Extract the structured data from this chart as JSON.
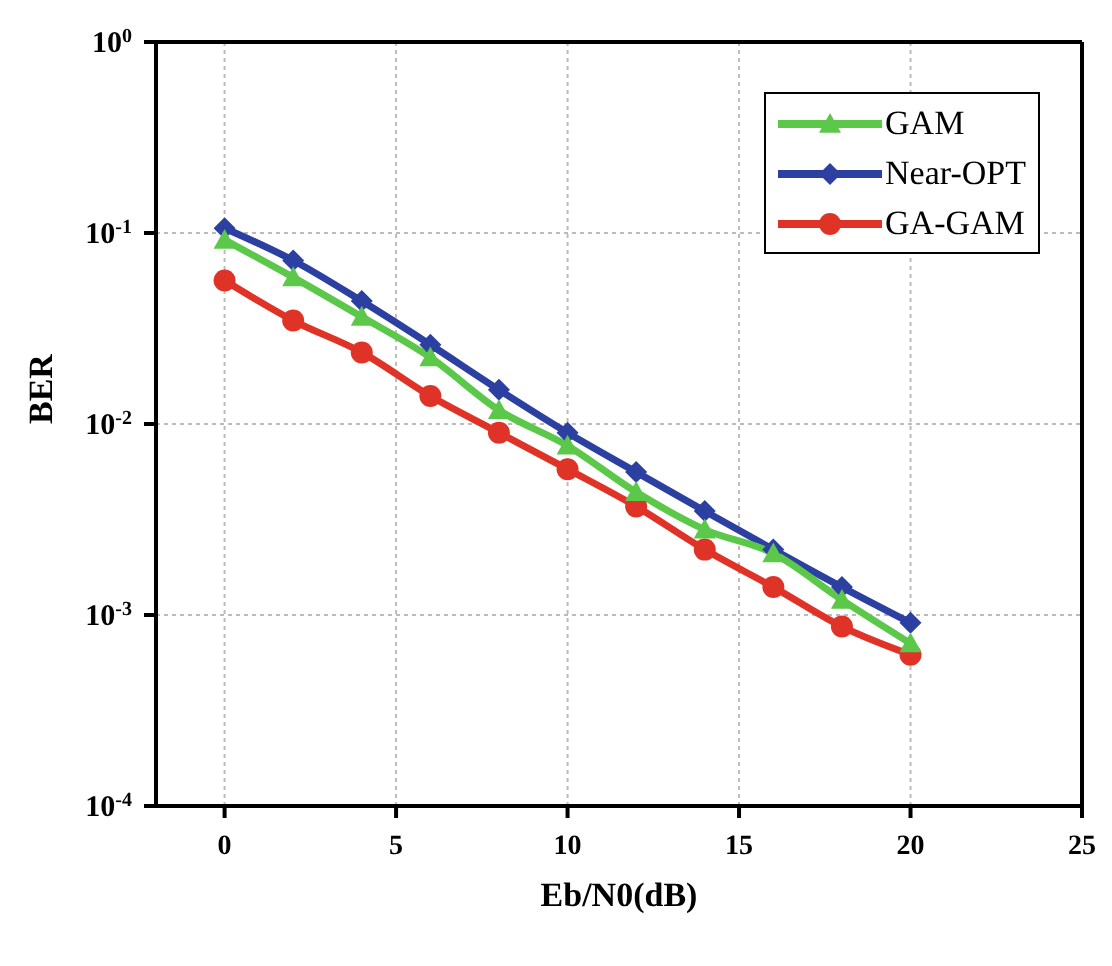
{
  "chart_data": {
    "type": "line",
    "xlabel": "Eb/N0(dB)",
    "ylabel": "BER",
    "log": "y",
    "grid": true,
    "legend": "top right",
    "line_style": "solid",
    "x": [
      0,
      2,
      4,
      6,
      8,
      10,
      12,
      14,
      16,
      18,
      20
    ],
    "xlim": [
      -2,
      25
    ],
    "xticks": [
      0,
      5,
      10,
      15,
      20,
      25
    ],
    "ylim": [
      0.0001,
      1
    ],
    "yticks": [
      {
        "value": 0.0001,
        "label": "10$^{-4}$"
      },
      {
        "value": 0.001,
        "label": "10$^{-3}$"
      },
      {
        "value": 0.01,
        "label": "10$^{-2}$"
      },
      {
        "value": 0.1,
        "label": "10$^{-1}$"
      },
      {
        "value": 1,
        "label": "10$^{0}$"
      }
    ],
    "series": [
      {
        "name": "GAM",
        "color": "#5cc84a",
        "marker": "triangle",
        "values": [
          0.092,
          0.0586,
          0.0364,
          0.0223,
          0.0118,
          0.0077,
          0.0044,
          0.0028,
          0.0021,
          0.0012,
          0.00071
        ]
      },
      {
        "name": "Near-OPT",
        "color": "#2b40a0",
        "marker": "diamond",
        "values": [
          0.106,
          0.0718,
          0.044,
          0.026,
          0.0151,
          0.009,
          0.0056,
          0.0035,
          0.0022,
          0.0014,
          0.00091
        ]
      },
      {
        "name": "GA-GAM",
        "color": "#e03328",
        "marker": "circle",
        "values": [
          0.0564,
          0.0348,
          0.0237,
          0.014,
          0.009,
          0.0058,
          0.0037,
          0.0022,
          0.0014,
          0.00087,
          0.00062
        ]
      }
    ]
  }
}
